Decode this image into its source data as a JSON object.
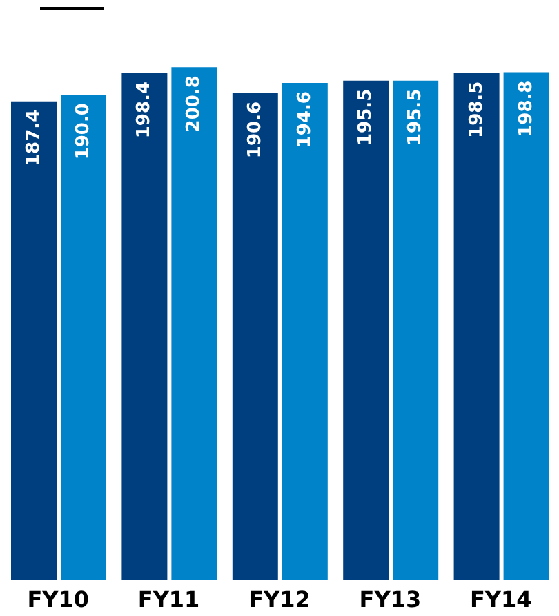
{
  "chart_data": {
    "type": "bar",
    "categories": [
      "FY10",
      "FY11",
      "FY12",
      "FY13",
      "FY14"
    ],
    "series": [
      {
        "color": "#003f7f",
        "values": [
          187.4,
          198.4,
          190.6,
          195.5,
          198.5
        ],
        "value_labels": [
          "187.4",
          "198.4",
          "190.6",
          "195.5",
          "198.5"
        ]
      },
      {
        "color": "#0083c8",
        "values": [
          190.0,
          200.8,
          194.6,
          195.5,
          198.8
        ],
        "value_labels": [
          "190.0",
          "200.8",
          "194.6",
          "195.5",
          "198.8"
        ]
      }
    ]
  }
}
